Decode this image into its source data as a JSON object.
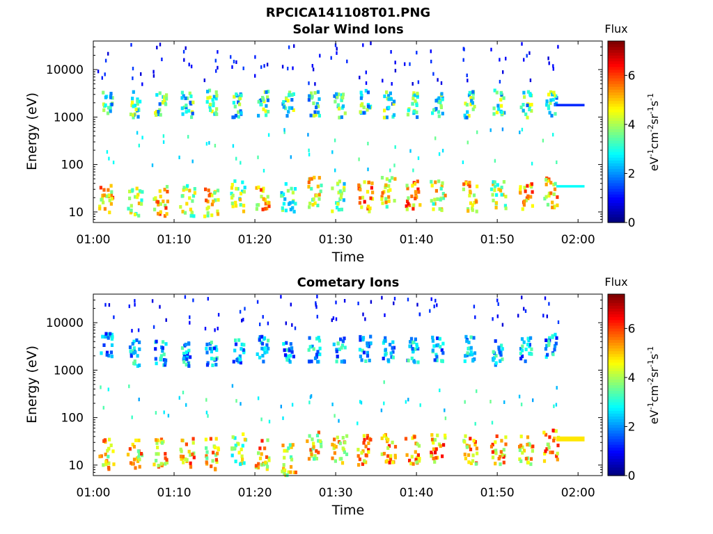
{
  "figure": {
    "title": "RPCICA141108T01.PNG"
  },
  "chart_data": [
    {
      "type": "heatmap",
      "title": "Solar Wind Ions",
      "xlabel": "Time",
      "ylabel": "Energy (eV)",
      "x_tick_labels": [
        "01:00",
        "01:10",
        "01:20",
        "01:30",
        "01:40",
        "01:50",
        "02:00"
      ],
      "x_range_minutes": [
        0,
        63
      ],
      "y_scale": "log",
      "y_tick_labels": [
        "10",
        "100",
        "1000",
        "10000"
      ],
      "y_range_ev": [
        6,
        40000
      ],
      "colorbar": {
        "title": "Flux",
        "label": "eV-1cm-2sr-1s-1",
        "tick_labels": [
          "0",
          "2",
          "4",
          "6"
        ],
        "range": [
          0,
          7.4
        ],
        "colormap": "jet"
      },
      "bursts": [
        {
          "t": 1.5,
          "hi_ev": 2200,
          "lo_ev": 20,
          "lo_flux": 6.4
        },
        {
          "t": 5.0,
          "hi_ev": 2000,
          "lo_ev": 20,
          "lo_flux": 5.4
        },
        {
          "t": 8.2,
          "hi_ev": 2200,
          "lo_ev": 20,
          "lo_flux": 6.4
        },
        {
          "t": 11.5,
          "hi_ev": 2000,
          "lo_ev": 20,
          "lo_flux": 5.6
        },
        {
          "t": 14.5,
          "hi_ev": 2200,
          "lo_ev": 20,
          "lo_flux": 6.0
        },
        {
          "t": 17.8,
          "hi_ev": 2000,
          "lo_ev": 25,
          "lo_flux": 5.2
        },
        {
          "t": 20.8,
          "hi_ev": 2100,
          "lo_ev": 20,
          "lo_flux": 6.2
        },
        {
          "t": 24.0,
          "hi_ev": 2000,
          "lo_ev": 25,
          "lo_flux": 4.2
        },
        {
          "t": 27.2,
          "hi_ev": 2100,
          "lo_ev": 30,
          "lo_flux": 6.0
        },
        {
          "t": 30.3,
          "hi_ev": 2000,
          "lo_ev": 25,
          "lo_flux": 5.0
        },
        {
          "t": 33.5,
          "hi_ev": 2200,
          "lo_ev": 25,
          "lo_flux": 6.6
        },
        {
          "t": 36.4,
          "hi_ev": 2000,
          "lo_ev": 30,
          "lo_flux": 5.8
        },
        {
          "t": 39.4,
          "hi_ev": 2000,
          "lo_ev": 25,
          "lo_flux": 6.6
        },
        {
          "t": 42.5,
          "hi_ev": 2100,
          "lo_ev": 25,
          "lo_flux": 5.6
        },
        {
          "t": 46.5,
          "hi_ev": 2000,
          "lo_ev": 25,
          "lo_flux": 6.2
        },
        {
          "t": 50.0,
          "hi_ev": 2200,
          "lo_ev": 25,
          "lo_flux": 5.4
        },
        {
          "t": 53.4,
          "hi_ev": 2000,
          "lo_ev": 25,
          "lo_flux": 6.4
        },
        {
          "t": 56.5,
          "hi_ev": 2000,
          "lo_ev": 30,
          "lo_flux": 6.2
        }
      ],
      "steady": [
        {
          "t0": 57.3,
          "t1": 60.8,
          "energy_ev": 1800,
          "flux": 1.2
        },
        {
          "t0": 57.3,
          "t1": 60.8,
          "energy_ev": 35,
          "flux": 2.8
        }
      ]
    },
    {
      "type": "heatmap",
      "title": "Cometary Ions",
      "xlabel": "Time",
      "ylabel": "Energy (eV)",
      "x_tick_labels": [
        "01:00",
        "01:10",
        "01:20",
        "01:30",
        "01:40",
        "01:50",
        "02:00"
      ],
      "x_range_minutes": [
        0,
        63
      ],
      "y_scale": "log",
      "y_tick_labels": [
        "10",
        "100",
        "1000",
        "10000"
      ],
      "y_range_ev": [
        6,
        40000
      ],
      "colorbar": {
        "title": "Flux",
        "label": "eV-1cm-2sr-1s-1",
        "tick_labels": [
          "0",
          "2",
          "4",
          "6"
        ],
        "range": [
          0,
          7.4
        ],
        "colormap": "jet"
      },
      "bursts": [
        {
          "t": 1.5,
          "hi_ev": 3500,
          "lo_ev": 20,
          "lo_flux": 6.0
        },
        {
          "t": 5.0,
          "hi_ev": 2500,
          "lo_ev": 20,
          "lo_flux": 6.2
        },
        {
          "t": 8.2,
          "hi_ev": 2500,
          "lo_ev": 20,
          "lo_flux": 6.4
        },
        {
          "t": 11.5,
          "hi_ev": 2500,
          "lo_ev": 20,
          "lo_flux": 6.6
        },
        {
          "t": 14.5,
          "hi_ev": 2500,
          "lo_ev": 20,
          "lo_flux": 6.2
        },
        {
          "t": 17.8,
          "hi_ev": 2500,
          "lo_ev": 25,
          "lo_flux": 5.2
        },
        {
          "t": 20.8,
          "hi_ev": 3000,
          "lo_ev": 20,
          "lo_flux": 6.4
        },
        {
          "t": 24.0,
          "hi_ev": 2500,
          "lo_ev": 15,
          "lo_flux": 5.8
        },
        {
          "t": 27.2,
          "hi_ev": 3000,
          "lo_ev": 30,
          "lo_flux": 6.0
        },
        {
          "t": 30.3,
          "hi_ev": 3000,
          "lo_ev": 25,
          "lo_flux": 6.2
        },
        {
          "t": 33.5,
          "hi_ev": 3000,
          "lo_ev": 25,
          "lo_flux": 6.6
        },
        {
          "t": 36.4,
          "hi_ev": 3000,
          "lo_ev": 25,
          "lo_flux": 6.6
        },
        {
          "t": 39.4,
          "hi_ev": 3000,
          "lo_ev": 25,
          "lo_flux": 6.4
        },
        {
          "t": 42.5,
          "hi_ev": 3000,
          "lo_ev": 25,
          "lo_flux": 6.6
        },
        {
          "t": 46.5,
          "hi_ev": 3000,
          "lo_ev": 25,
          "lo_flux": 6.4
        },
        {
          "t": 50.0,
          "hi_ev": 2500,
          "lo_ev": 25,
          "lo_flux": 6.4
        },
        {
          "t": 53.4,
          "hi_ev": 3000,
          "lo_ev": 25,
          "lo_flux": 6.2
        },
        {
          "t": 56.5,
          "hi_ev": 3500,
          "lo_ev": 30,
          "lo_flux": 6.6
        }
      ],
      "steady": [
        {
          "t0": 57.3,
          "t1": 60.8,
          "energy_ev": 38,
          "flux": 4.8
        }
      ]
    }
  ]
}
